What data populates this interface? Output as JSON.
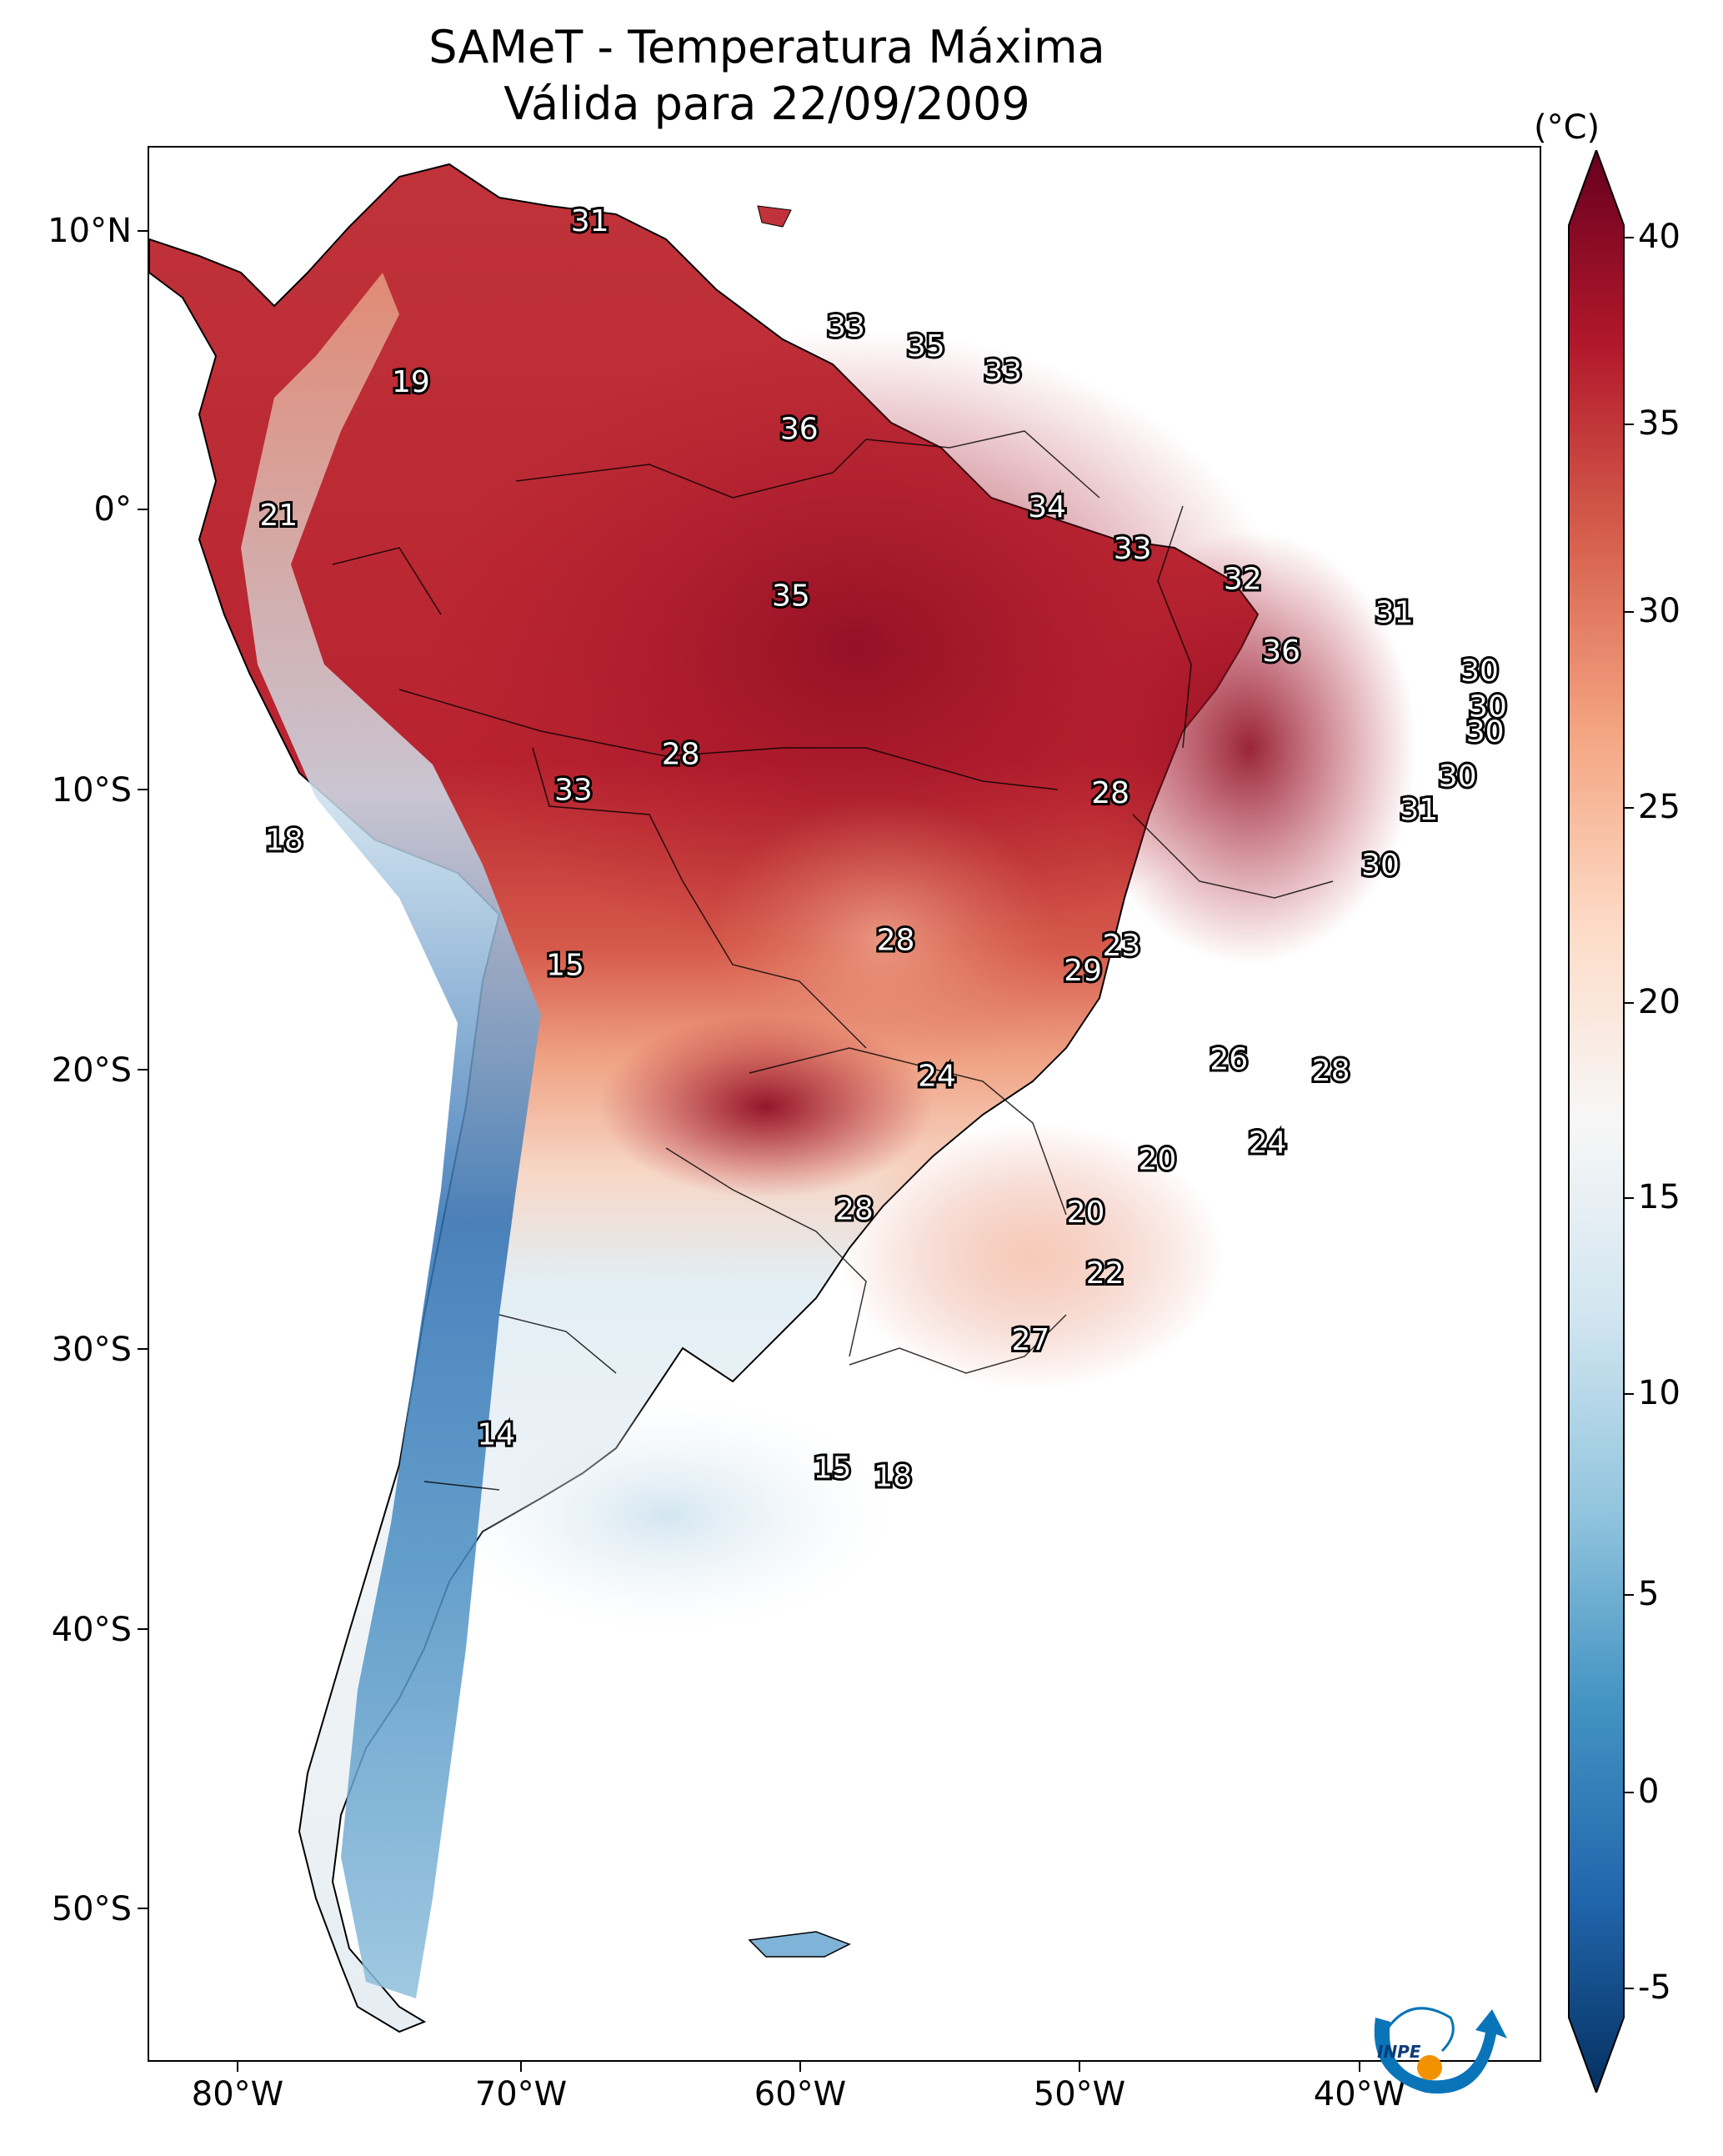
{
  "title": {
    "line1": "SAMeT - Temperatura Máxima",
    "line2": "Válida para 22/09/2009"
  },
  "axes": {
    "lat_labels": [
      "10°N",
      "0°",
      "10°S",
      "20°S",
      "30°S",
      "40°S",
      "50°S"
    ],
    "lon_labels": [
      "80°W",
      "70°W",
      "60°W",
      "50°W",
      "40°W"
    ]
  },
  "colorbar": {
    "unit": "(°C)",
    "ticks": [
      "40",
      "35",
      "30",
      "25",
      "20",
      "15",
      "10",
      "5",
      "0",
      "-5"
    ],
    "min": -5,
    "max": 40,
    "colormap": [
      "#053061",
      "#2166ac",
      "#4393c3",
      "#92c5de",
      "#d1e5f0",
      "#f7f7f7",
      "#fddbc7",
      "#f4a582",
      "#d6604d",
      "#b2182b",
      "#67001f"
    ]
  },
  "station_labels": [
    {
      "value": "31",
      "lon": -67.2,
      "lat": 10.3
    },
    {
      "value": "19",
      "lon": -73.7,
      "lat": 4.5
    },
    {
      "value": "33",
      "lon": -57.9,
      "lat": 6.5
    },
    {
      "value": "35",
      "lon": -55.0,
      "lat": 5.8
    },
    {
      "value": "33",
      "lon": -52.2,
      "lat": 4.9
    },
    {
      "value": "36",
      "lon": -59.6,
      "lat": 2.8
    },
    {
      "value": "21",
      "lon": -78.5,
      "lat": -0.3
    },
    {
      "value": "34",
      "lon": -50.6,
      "lat": 0.0
    },
    {
      "value": "33",
      "lon": -47.5,
      "lat": -1.5
    },
    {
      "value": "35",
      "lon": -59.9,
      "lat": -3.2
    },
    {
      "value": "32",
      "lon": -43.5,
      "lat": -2.6
    },
    {
      "value": "31",
      "lon": -38.0,
      "lat": -3.8
    },
    {
      "value": "36",
      "lon": -42.1,
      "lat": -5.2
    },
    {
      "value": "30",
      "lon": -34.9,
      "lat": -5.9
    },
    {
      "value": "30",
      "lon": -34.6,
      "lat": -7.2
    },
    {
      "value": "30",
      "lon": -34.7,
      "lat": -8.1
    },
    {
      "value": "28",
      "lon": -63.9,
      "lat": -8.9
    },
    {
      "value": "33",
      "lon": -67.8,
      "lat": -10.2
    },
    {
      "value": "28",
      "lon": -48.3,
      "lat": -10.3
    },
    {
      "value": "30",
      "lon": -35.7,
      "lat": -9.7
    },
    {
      "value": "31",
      "lon": -37.1,
      "lat": -10.9
    },
    {
      "value": "18",
      "lon": -78.3,
      "lat": -12.0
    },
    {
      "value": "30",
      "lon": -38.5,
      "lat": -12.9
    },
    {
      "value": "28",
      "lon": -56.1,
      "lat": -15.6
    },
    {
      "value": "23",
      "lon": -47.9,
      "lat": -15.8
    },
    {
      "value": "29",
      "lon": -49.3,
      "lat": -16.7
    },
    {
      "value": "15",
      "lon": -68.1,
      "lat": -16.5
    },
    {
      "value": "26",
      "lon": -44.0,
      "lat": -19.9
    },
    {
      "value": "28",
      "lon": -40.3,
      "lat": -20.3
    },
    {
      "value": "24",
      "lon": -54.6,
      "lat": -20.5
    },
    {
      "value": "24",
      "lon": -42.6,
      "lat": -22.9
    },
    {
      "value": "20",
      "lon": -46.6,
      "lat": -23.5
    },
    {
      "value": "28",
      "lon": -57.6,
      "lat": -25.3
    },
    {
      "value": "20",
      "lon": -49.2,
      "lat": -25.4
    },
    {
      "value": "22",
      "lon": -48.5,
      "lat": -27.6
    },
    {
      "value": "27",
      "lon": -51.2,
      "lat": -30.0
    },
    {
      "value": "14",
      "lon": -70.6,
      "lat": -33.4
    },
    {
      "value": "15",
      "lon": -58.4,
      "lat": -34.6
    },
    {
      "value": "18",
      "lon": -56.2,
      "lat": -34.9
    }
  ],
  "logo": {
    "text": "INPE"
  }
}
